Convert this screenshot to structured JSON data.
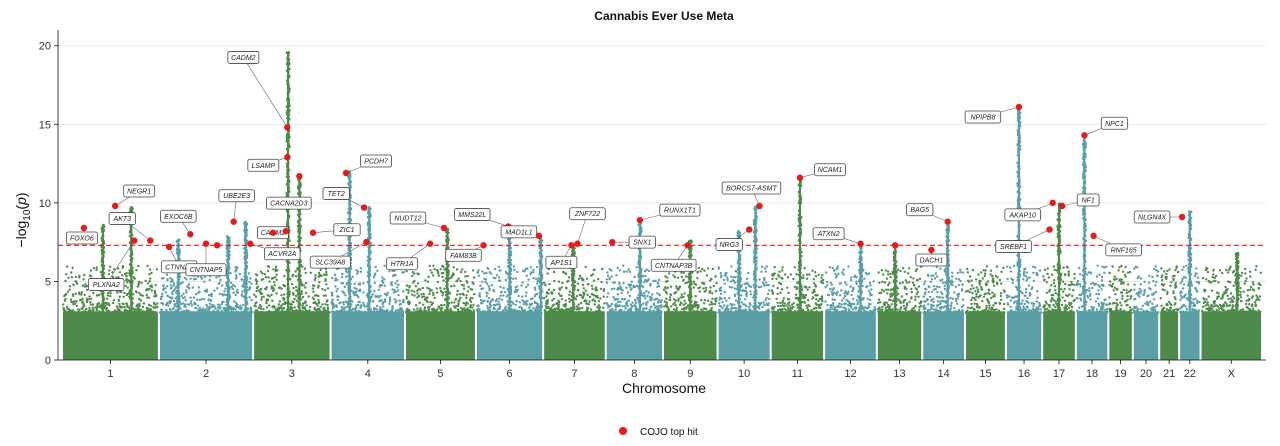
{
  "chart_data": {
    "type": "scatter",
    "subtype": "manhattan",
    "title": "Cannabis Ever Use Meta",
    "xlabel": "Chromosome",
    "ylabel": "-log10(p)",
    "ylim": [
      0,
      21
    ],
    "yticks": [
      0,
      5,
      10,
      15,
      20
    ],
    "grid": true,
    "significance_line": {
      "value": 7.3,
      "color": "#e41a1c",
      "style": "dashed"
    },
    "colors": {
      "odd": "#4e8a4a",
      "even": "#5a9ea6",
      "hit": "#e41a1c"
    },
    "legend": {
      "position": "bottom",
      "label": "COJO top hit"
    },
    "chromosomes": [
      {
        "label": "1",
        "peaks": [
          {
            "pos": 0.42,
            "p": 8.6
          },
          {
            "pos": 0.72,
            "p": 9.8
          }
        ]
      },
      {
        "label": "2",
        "peaks": [
          {
            "pos": 0.2,
            "p": 7.7
          },
          {
            "pos": 0.74,
            "p": 7.9
          },
          {
            "pos": 0.93,
            "p": 8.8
          }
        ]
      },
      {
        "label": "3",
        "peaks": [
          {
            "pos": 0.45,
            "p": 19.6
          },
          {
            "pos": 0.6,
            "p": 11.7
          }
        ]
      },
      {
        "label": "4",
        "peaks": [
          {
            "pos": 0.25,
            "p": 12.0
          },
          {
            "pos": 0.52,
            "p": 9.8
          }
        ]
      },
      {
        "label": "5",
        "peaks": [
          {
            "pos": 0.6,
            "p": 8.4
          }
        ]
      },
      {
        "label": "6",
        "peaks": [
          {
            "pos": 0.5,
            "p": 8.6
          },
          {
            "pos": 0.98,
            "p": 7.9
          }
        ]
      },
      {
        "label": "7",
        "peaks": [
          {
            "pos": 0.48,
            "p": 7.4
          }
        ]
      },
      {
        "label": "8",
        "peaks": [
          {
            "pos": 0.6,
            "p": 8.9
          }
        ]
      },
      {
        "label": "9",
        "peaks": [
          {
            "pos": 0.5,
            "p": 7.6
          }
        ]
      },
      {
        "label": "10",
        "peaks": [
          {
            "pos": 0.4,
            "p": 8.2
          },
          {
            "pos": 0.72,
            "p": 9.8
          }
        ]
      },
      {
        "label": "11",
        "peaks": [
          {
            "pos": 0.55,
            "p": 11.6
          }
        ]
      },
      {
        "label": "12",
        "peaks": [
          {
            "pos": 0.7,
            "p": 7.4
          }
        ]
      },
      {
        "label": "13",
        "peaks": [
          {
            "pos": 0.4,
            "p": 7.3
          }
        ]
      },
      {
        "label": "14",
        "peaks": [
          {
            "pos": 0.6,
            "p": 8.8
          }
        ]
      },
      {
        "label": "15",
        "peaks": []
      },
      {
        "label": "16",
        "peaks": [
          {
            "pos": 0.35,
            "p": 16.1
          }
        ]
      },
      {
        "label": "17",
        "peaks": [
          {
            "pos": 0.5,
            "p": 10.0
          }
        ]
      },
      {
        "label": "18",
        "peaks": [
          {
            "pos": 0.25,
            "p": 14.3
          }
        ]
      },
      {
        "label": "19",
        "peaks": []
      },
      {
        "label": "20",
        "peaks": []
      },
      {
        "label": "21",
        "peaks": []
      },
      {
        "label": "22",
        "peaks": [
          {
            "pos": 0.5,
            "p": 9.5
          }
        ]
      },
      {
        "label": "X",
        "peaks": [
          {
            "pos": 0.6,
            "p": 6.8
          }
        ]
      }
    ],
    "hits": [
      {
        "gene": "FOXO6",
        "chrom": "1",
        "pos": 0.22,
        "p": 8.4,
        "label_dx": -2,
        "label_dy": 10
      },
      {
        "gene": "NEGR1",
        "chrom": "1",
        "pos": 0.55,
        "p": 9.8,
        "label_dx": 24,
        "label_dy": -15
      },
      {
        "gene": "PLXNA2",
        "chrom": "1",
        "pos": 0.75,
        "p": 7.6,
        "label_dx": -28,
        "label_dy": 44
      },
      {
        "gene": "AKT3",
        "chrom": "1",
        "pos": 0.92,
        "p": 7.6,
        "label_dx": -28,
        "label_dy": -22
      },
      {
        "gene": "CTNNA2",
        "chrom": "2",
        "pos": 0.1,
        "p": 7.2,
        "label_dx": 10,
        "label_dy": 20
      },
      {
        "gene": "EXOC6B",
        "chrom": "2",
        "pos": 0.33,
        "p": 8.0,
        "label_dx": -12,
        "label_dy": -18
      },
      {
        "gene": "CNTNAP5",
        "chrom": "2",
        "pos": 0.5,
        "p": 7.4,
        "label_dx": 0,
        "label_dy": 26
      },
      {
        "gene": "",
        "chrom": "2",
        "pos": 0.62,
        "p": 7.3,
        "label_dx": 0,
        "label_dy": 0
      },
      {
        "gene": "UBE2E3",
        "chrom": "2",
        "pos": 0.8,
        "p": 8.8,
        "label_dx": 3,
        "label_dy": -26
      },
      {
        "gene": "ACVR2A",
        "chrom": "2",
        "pos": 0.98,
        "p": 7.4,
        "label_dx": 32,
        "label_dy": 10
      },
      {
        "gene": "CADM2",
        "chrom": "3",
        "pos": 0.25,
        "p": 8.1,
        "label_dx": 0,
        "label_dy": 0
      },
      {
        "gene": "CACNA2D3",
        "chrom": "3",
        "pos": 0.42,
        "p": 8.2,
        "label_dx": 3,
        "label_dy": -28
      },
      {
        "gene": "CADM2",
        "chrom": "3",
        "pos": 0.44,
        "p": 14.8,
        "label_dx": -44,
        "label_dy": -70
      },
      {
        "gene": "LSAMP",
        "chrom": "3",
        "pos": 0.44,
        "p": 12.9,
        "label_dx": -24,
        "label_dy": 8
      },
      {
        "gene": "",
        "chrom": "3",
        "pos": 0.6,
        "p": 11.7,
        "label_dx": 0,
        "label_dy": 0
      },
      {
        "gene": "ZIC1",
        "chrom": "3",
        "pos": 0.78,
        "p": 8.1,
        "label_dx": 34,
        "label_dy": -3
      },
      {
        "gene": "PCDH7",
        "chrom": "4",
        "pos": 0.2,
        "p": 11.9,
        "label_dx": 30,
        "label_dy": -12
      },
      {
        "gene": "TET2",
        "chrom": "4",
        "pos": 0.45,
        "p": 9.7,
        "label_dx": -28,
        "label_dy": -14
      },
      {
        "gene": "SLC39A8",
        "chrom": "4",
        "pos": 0.48,
        "p": 7.5,
        "label_dx": -36,
        "label_dy": 20
      },
      {
        "gene": "HTR1A",
        "chrom": "5",
        "pos": 0.35,
        "p": 7.4,
        "label_dx": -28,
        "label_dy": 20
      },
      {
        "gene": "NUDT12",
        "chrom": "5",
        "pos": 0.55,
        "p": 8.4,
        "label_dx": -36,
        "label_dy": -10
      },
      {
        "gene": "FAM83B",
        "chrom": "6",
        "pos": 0.1,
        "p": 7.3,
        "label_dx": -20,
        "label_dy": 10
      },
      {
        "gene": "MMS22L",
        "chrom": "6",
        "pos": 0.48,
        "p": 8.5,
        "label_dx": -36,
        "label_dy": -12
      },
      {
        "gene": "MAD1L1",
        "chrom": "6",
        "pos": 0.95,
        "p": 7.9,
        "label_dx": -20,
        "label_dy": -4
      },
      {
        "gene": "ZNF722",
        "chrom": "7",
        "pos": 0.55,
        "p": 7.4,
        "label_dx": 10,
        "label_dy": -30
      },
      {
        "gene": "AP1S1",
        "chrom": "7",
        "pos": 0.45,
        "p": 7.3,
        "label_dx": -10,
        "label_dy": 17
      },
      {
        "gene": "SNX1",
        "chrom": "8",
        "pos": 0.1,
        "p": 7.5,
        "label_dx": 30,
        "label_dy": 0
      },
      {
        "gene": "RUNX1T1",
        "chrom": "8",
        "pos": 0.6,
        "p": 8.9,
        "label_dx": 40,
        "label_dy": -10
      },
      {
        "gene": "CNTNAP3B",
        "chrom": "9",
        "pos": 0.45,
        "p": 7.3,
        "label_dx": -14,
        "label_dy": 20
      },
      {
        "gene": "NRG3",
        "chrom": "10",
        "pos": 0.6,
        "p": 8.3,
        "label_dx": -20,
        "label_dy": 15
      },
      {
        "gene": "BORCS7-ASMT",
        "chrom": "10",
        "pos": 0.8,
        "p": 9.8,
        "label_dx": -8,
        "label_dy": -18
      },
      {
        "gene": "NCAM1",
        "chrom": "11",
        "pos": 0.55,
        "p": 11.6,
        "label_dx": 30,
        "label_dy": -8
      },
      {
        "gene": "ATXN2",
        "chrom": "12",
        "pos": 0.7,
        "p": 7.4,
        "label_dx": -32,
        "label_dy": -10
      },
      {
        "gene": "",
        "chrom": "13",
        "pos": 0.4,
        "p": 7.3,
        "label_dx": 0,
        "label_dy": 0
      },
      {
        "gene": "DACH1",
        "chrom": "14",
        "pos": 0.2,
        "p": 7.0,
        "label_dx": 0,
        "label_dy": 10
      },
      {
        "gene": "BAG5",
        "chrom": "14",
        "pos": 0.6,
        "p": 8.8,
        "label_dx": -28,
        "label_dy": -12
      },
      {
        "gene": "NPIPB8",
        "chrom": "16",
        "pos": 0.35,
        "p": 16.1,
        "label_dx": -36,
        "label_dy": 10
      },
      {
        "gene": "AKAP10",
        "chrom": "17",
        "pos": 0.3,
        "p": 10.0,
        "label_dx": -30,
        "label_dy": 12
      },
      {
        "gene": "SREBF1",
        "chrom": "17",
        "pos": 0.2,
        "p": 8.3,
        "label_dx": -36,
        "label_dy": 17
      },
      {
        "gene": "NF1",
        "chrom": "17",
        "pos": 0.6,
        "p": 9.8,
        "label_dx": 26,
        "label_dy": -6
      },
      {
        "gene": "NPC1",
        "chrom": "18",
        "pos": 0.25,
        "p": 14.3,
        "label_dx": 30,
        "label_dy": -12
      },
      {
        "gene": "RNF165",
        "chrom": "18",
        "pos": 0.55,
        "p": 7.9,
        "label_dx": 30,
        "label_dy": 14
      },
      {
        "gene": "NLGN4X",
        "chrom": "22",
        "pos": 0.1,
        "p": 9.1,
        "label_dx": -30,
        "label_dy": 0
      }
    ]
  }
}
